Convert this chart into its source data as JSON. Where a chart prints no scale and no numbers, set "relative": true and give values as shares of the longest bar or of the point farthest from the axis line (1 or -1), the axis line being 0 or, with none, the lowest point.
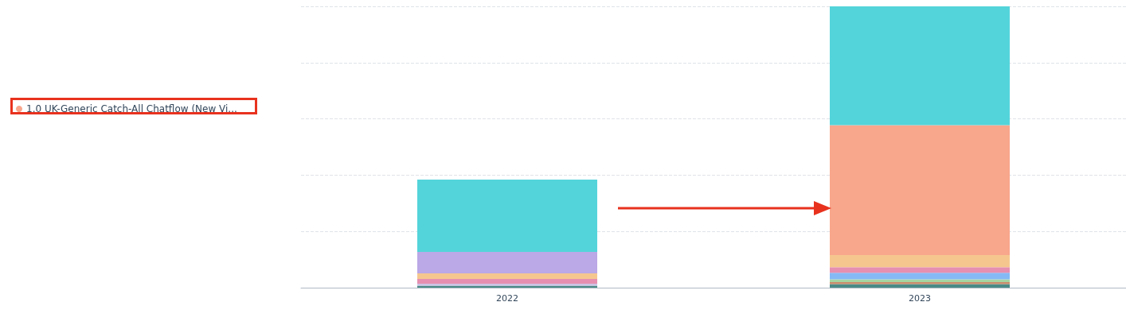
{
  "chart_data": {
    "type": "bar",
    "stacked": true,
    "relative": true,
    "grid": "y",
    "legend": "left",
    "categories": [
      "2022",
      "2023"
    ],
    "series": [
      {
        "color": "#4a8a86",
        "values": [
          0.007,
          0.013
        ]
      },
      {
        "color": "#c98b6b",
        "values": [
          0,
          0.007
        ]
      },
      {
        "color": "#a6d5a0",
        "values": [
          0,
          0.01
        ]
      },
      {
        "color": "#84b9f5",
        "values": [
          0,
          0.023
        ]
      },
      {
        "color": "#cfc4e6",
        "values": [
          0.007,
          0
        ]
      },
      {
        "color": "#e68fb0",
        "values": [
          0.017,
          0.02
        ]
      },
      {
        "color": "#f5c78f",
        "values": [
          0.02,
          0.043
        ]
      },
      {
        "color": "#bba8e6",
        "values": [
          0.076,
          0
        ]
      },
      {
        "name": "1.0 UK-Generic Catch-All Chatflow (New Vi...",
        "color": "#f8a68c",
        "values": [
          0,
          0.462
        ]
      },
      {
        "color": "#53d4da",
        "values": [
          0.257,
          0.422
        ]
      }
    ]
  }
}
